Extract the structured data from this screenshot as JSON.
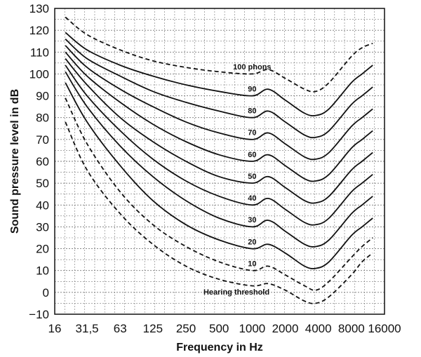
{
  "chart_data": {
    "type": "line",
    "title": "",
    "xlabel": "Frequency in Hz",
    "ylabel": "Sound pressure level in dB",
    "xscale": "log",
    "x_ticks": [
      16,
      31.5,
      63,
      125,
      250,
      500,
      1000,
      2000,
      4000,
      8000,
      16000
    ],
    "x_tick_labels": [
      "16",
      "31,5",
      "63",
      "125",
      "250",
      "500",
      "1000",
      "2000",
      "4000",
      "8000",
      "16000"
    ],
    "y_ticks": [
      -10,
      0,
      10,
      20,
      30,
      40,
      50,
      60,
      70,
      80,
      90,
      100,
      110,
      120,
      130
    ],
    "y_tick_labels": [
      "−10",
      "0",
      "10",
      "20",
      "30",
      "40",
      "50",
      "60",
      "70",
      "80",
      "90",
      "100",
      "110",
      "120",
      "130"
    ],
    "ylim": [
      -10,
      130
    ],
    "grid": true,
    "legend": "none",
    "series": [
      {
        "name": "Hearing threshold",
        "style": "dashed",
        "x": [
          20,
          31.5,
          63,
          125,
          250,
          500,
          1000,
          1400,
          2000,
          3000,
          3800,
          5000,
          8000,
          10000,
          12500
        ],
        "y": [
          78,
          56,
          36,
          22,
          12,
          6,
          3,
          4,
          1,
          -4,
          -5,
          -2,
          8,
          14,
          18
        ]
      },
      {
        "name": "10",
        "style": "dashed",
        "x": [
          20,
          31.5,
          63,
          125,
          250,
          500,
          1000,
          1400,
          2000,
          3000,
          3800,
          5000,
          8000,
          10000,
          12500
        ],
        "y": [
          89,
          68,
          46,
          31,
          21,
          14,
          10,
          12,
          8,
          3,
          1,
          5,
          16,
          21,
          25
        ]
      },
      {
        "name": "20",
        "style": "solid",
        "x": [
          20,
          31.5,
          63,
          125,
          250,
          500,
          1000,
          1400,
          2000,
          3000,
          3800,
          5000,
          8000,
          10000,
          12500
        ],
        "y": [
          96,
          78,
          58,
          42,
          31,
          24,
          20,
          22,
          18,
          12,
          11,
          14,
          26,
          30,
          34
        ]
      },
      {
        "name": "30",
        "style": "solid",
        "x": [
          20,
          31.5,
          63,
          125,
          250,
          500,
          1000,
          1400,
          2000,
          3000,
          3800,
          5000,
          8000,
          10000,
          12500
        ],
        "y": [
          101,
          85,
          67,
          53,
          42,
          34,
          30,
          33,
          28,
          22,
          21,
          24,
          36,
          40,
          44
        ]
      },
      {
        "name": "40",
        "style": "solid",
        "x": [
          20,
          31.5,
          63,
          125,
          250,
          500,
          1000,
          1400,
          2000,
          3000,
          3800,
          5000,
          8000,
          10000,
          12500
        ],
        "y": [
          104,
          90,
          74,
          61,
          51,
          44,
          40,
          43,
          38,
          32,
          31,
          34,
          46,
          50,
          54
        ]
      },
      {
        "name": "50",
        "style": "solid",
        "x": [
          20,
          31.5,
          63,
          125,
          250,
          500,
          1000,
          1400,
          2000,
          3000,
          3800,
          5000,
          8000,
          10000,
          12500
        ],
        "y": [
          107,
          95,
          80,
          69,
          60,
          53,
          50,
          53,
          48,
          42,
          41,
          44,
          56,
          60,
          64
        ]
      },
      {
        "name": "60",
        "style": "solid",
        "x": [
          20,
          31.5,
          63,
          125,
          250,
          500,
          1000,
          1400,
          2000,
          3000,
          3800,
          5000,
          8000,
          10000,
          12500
        ],
        "y": [
          110,
          99,
          87,
          77,
          69,
          63,
          60,
          63,
          58,
          52,
          51,
          54,
          66,
          70,
          74
        ]
      },
      {
        "name": "70",
        "style": "solid",
        "x": [
          20,
          31.5,
          63,
          125,
          250,
          500,
          1000,
          1400,
          2000,
          3000,
          3800,
          5000,
          8000,
          10000,
          12500
        ],
        "y": [
          113,
          103,
          93,
          85,
          78,
          73,
          70,
          73,
          68,
          62,
          61,
          64,
          76,
          80,
          84
        ]
      },
      {
        "name": "80",
        "style": "solid",
        "x": [
          20,
          31.5,
          63,
          125,
          250,
          500,
          1000,
          1400,
          2000,
          3000,
          3800,
          5000,
          8000,
          10000,
          12500
        ],
        "y": [
          116,
          107,
          99,
          92,
          87,
          83,
          80,
          83,
          78,
          72,
          71,
          74,
          86,
          90,
          94
        ]
      },
      {
        "name": "90",
        "style": "solid",
        "x": [
          20,
          31.5,
          63,
          125,
          250,
          500,
          1000,
          1400,
          2000,
          3000,
          3800,
          5000,
          8000,
          10000,
          12500
        ],
        "y": [
          119,
          111,
          104,
          99,
          95,
          92,
          90,
          93,
          88,
          82,
          81,
          84,
          96,
          100,
          104
        ]
      },
      {
        "name": "100 phons",
        "style": "dashed",
        "x": [
          20,
          31.5,
          63,
          125,
          250,
          500,
          1000,
          1400,
          2000,
          3000,
          3800,
          5000,
          8000,
          10000,
          12500
        ],
        "y": [
          126,
          118,
          111,
          106,
          103,
          101,
          100,
          102,
          98,
          93,
          92,
          96,
          108,
          112,
          114
        ]
      }
    ],
    "curve_labels": [
      {
        "text": "100 phons",
        "x": 1000,
        "y": 102
      },
      {
        "text": "90",
        "x": 1000,
        "y": 92
      },
      {
        "text": "80",
        "x": 1000,
        "y": 82
      },
      {
        "text": "70",
        "x": 1000,
        "y": 72
      },
      {
        "text": "60",
        "x": 1000,
        "y": 62
      },
      {
        "text": "50",
        "x": 1000,
        "y": 52
      },
      {
        "text": "40",
        "x": 1000,
        "y": 42
      },
      {
        "text": "30",
        "x": 1000,
        "y": 32
      },
      {
        "text": "20",
        "x": 1000,
        "y": 22
      },
      {
        "text": "10",
        "x": 1000,
        "y": 12
      },
      {
        "text": "Hearing threshold",
        "x": 720,
        "y": -1
      }
    ]
  }
}
